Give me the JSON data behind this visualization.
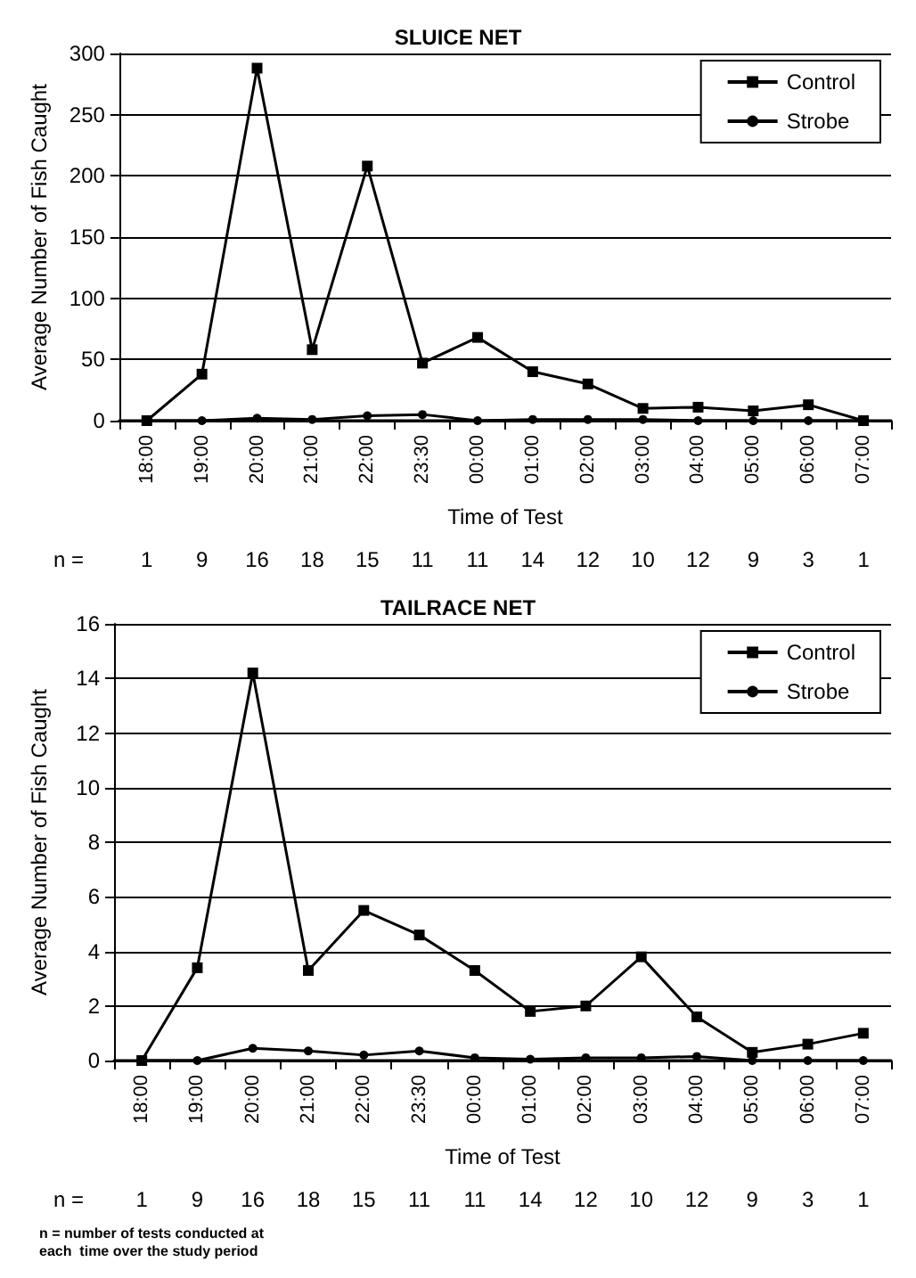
{
  "chart_data": [
    {
      "type": "line",
      "title": "SLUICE NET",
      "xlabel": "Time of Test",
      "ylabel": "Average Number of Fish Caught",
      "categories": [
        "18:00",
        "19:00",
        "20:00",
        "21:00",
        "22:00",
        "23:30",
        "00:00",
        "01:00",
        "02:00",
        "03:00",
        "04:00",
        "05:00",
        "06:00",
        "07:00"
      ],
      "series": [
        {
          "name": "Control",
          "color": "#000000",
          "marker": "square",
          "values": [
            0,
            38,
            288,
            58,
            208,
            47,
            68,
            40,
            30,
            10,
            11,
            8,
            13,
            0
          ]
        },
        {
          "name": "Strobe",
          "color": "#000000",
          "marker": "circle",
          "values": [
            0,
            0,
            2,
            1,
            4,
            5,
            0,
            1,
            1,
            1,
            0,
            0,
            0,
            0
          ]
        }
      ],
      "ylim": [
        0,
        300
      ],
      "yticks": [
        0,
        50,
        100,
        150,
        200,
        250,
        300
      ],
      "grid": "y",
      "legend": "top right",
      "annotations": [
        "n =",
        "1",
        "9",
        "16",
        "18",
        "15",
        "11",
        "11",
        "14",
        "12",
        "10",
        "12",
        "9",
        "3",
        "1"
      ]
    },
    {
      "type": "line",
      "title": "TAILRACE NET",
      "xlabel": "Time of Test",
      "ylabel": "Average Number of Fish Caught",
      "categories": [
        "18:00",
        "19:00",
        "20:00",
        "21:00",
        "22:00",
        "23:30",
        "00:00",
        "01:00",
        "02:00",
        "03:00",
        "04:00",
        "05:00",
        "06:00",
        "07:00"
      ],
      "series": [
        {
          "name": "Control",
          "color": "#000000",
          "marker": "square",
          "values": [
            0,
            3.4,
            14.2,
            3.3,
            5.5,
            4.6,
            3.3,
            1.8,
            2.0,
            3.8,
            1.6,
            0.3,
            0.6,
            1.0
          ]
        },
        {
          "name": "Strobe",
          "color": "#000000",
          "marker": "circle",
          "values": [
            0,
            0,
            0.45,
            0.35,
            0.2,
            0.35,
            0.1,
            0.05,
            0.1,
            0.1,
            0.15,
            0,
            0,
            0
          ]
        }
      ],
      "ylim": [
        0,
        16
      ],
      "yticks": [
        0,
        2,
        4,
        6,
        8,
        10,
        12,
        14,
        16
      ],
      "grid": "y",
      "legend": "top right",
      "annotations": [
        "n =",
        "1",
        "9",
        "16",
        "18",
        "15",
        "11",
        "11",
        "14",
        "12",
        "10",
        "12",
        "9",
        "3",
        "1",
        "n = number of tests conducted at\neach  time over the study period"
      ]
    }
  ]
}
